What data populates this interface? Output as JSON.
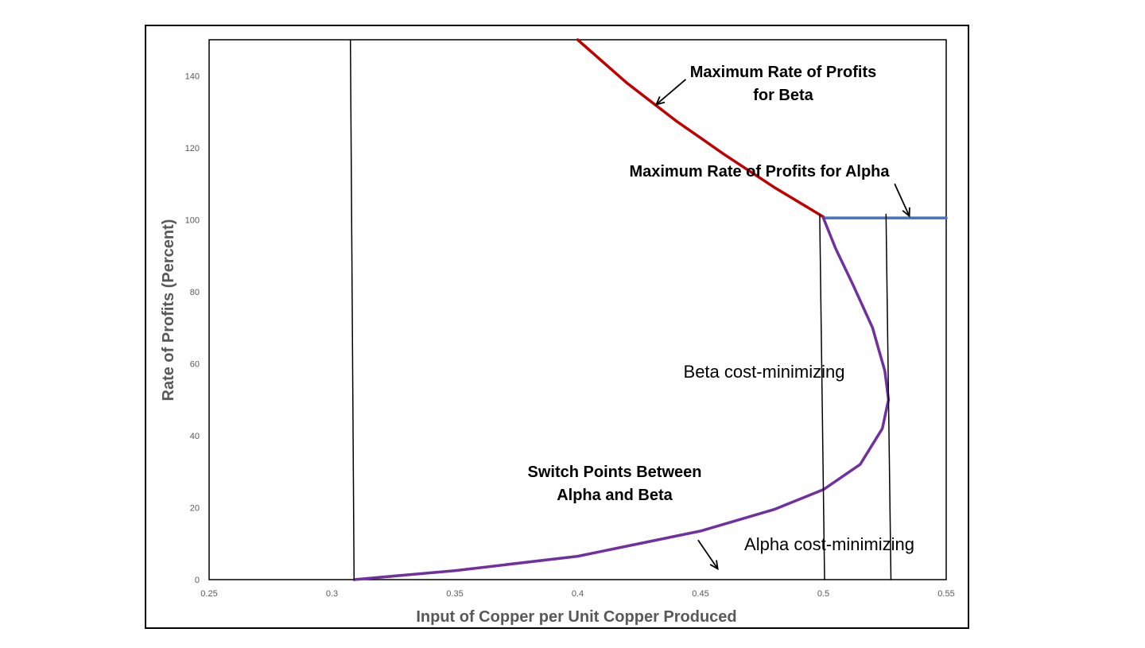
{
  "chart_data": {
    "type": "line",
    "title": "",
    "xlabel": "Input of Copper per Unit Copper Produced",
    "ylabel": "Rate of Profits (Percent)",
    "xlim": [
      0.25,
      0.55
    ],
    "ylim": [
      0,
      150
    ],
    "x_ticks": [
      "0.25",
      "0.3",
      "0.35",
      "0.4",
      "0.45",
      "0.5",
      "0.55"
    ],
    "y_ticks": [
      "0",
      "20",
      "40",
      "60",
      "80",
      "100",
      "120",
      "140"
    ],
    "grid": false,
    "legend": "none",
    "series": [
      {
        "key": "beta_max",
        "color": "#C00000",
        "points": [
          [
            0.4,
            150
          ],
          [
            0.42,
            138
          ],
          [
            0.44,
            127.5
          ],
          [
            0.46,
            118
          ],
          [
            0.48,
            109
          ],
          [
            0.5,
            100.8
          ]
        ]
      },
      {
        "key": "alpha_max",
        "color": "#4472C4",
        "points": [
          [
            0.5,
            100.5
          ],
          [
            0.55,
            100.5
          ]
        ]
      },
      {
        "key": "switch_points",
        "color": "#7030A0",
        "points": [
          [
            0.309,
            0
          ],
          [
            0.35,
            2.5
          ],
          [
            0.4,
            6.5
          ],
          [
            0.45,
            13.5
          ],
          [
            0.48,
            19.5
          ],
          [
            0.5,
            25
          ],
          [
            0.515,
            32
          ],
          [
            0.524,
            42
          ],
          [
            0.5265,
            50
          ],
          [
            0.525,
            58
          ],
          [
            0.52,
            70
          ],
          [
            0.512,
            82
          ],
          [
            0.505,
            92
          ],
          [
            0.5,
            100.5
          ]
        ]
      },
      {
        "key": "vline_1",
        "color": "#000000",
        "points": [
          [
            0.3075,
            150
          ],
          [
            0.309,
            0
          ]
        ]
      },
      {
        "key": "vline_2",
        "color": "#000000",
        "points": [
          [
            0.4985,
            101.5
          ],
          [
            0.5005,
            0
          ]
        ]
      },
      {
        "key": "vline_3",
        "color": "#000000",
        "points": [
          [
            0.5255,
            101.5
          ],
          [
            0.5275,
            0
          ]
        ]
      }
    ],
    "annotations": [
      {
        "text": "Maximum Rate of Profits",
        "style": "bold"
      },
      {
        "text": "for Beta",
        "style": "bold"
      },
      {
        "text": "Maximum Rate of Profits for Alpha",
        "style": "bold"
      },
      {
        "text": "Switch Points Between",
        "style": "bold"
      },
      {
        "text": "Alpha and Beta",
        "style": "bold"
      },
      {
        "text": "Beta cost-minimizing",
        "style": "plain"
      },
      {
        "text": "Alpha cost-minimizing",
        "style": "plain"
      }
    ],
    "arrows": [
      {
        "from": [
          0.444,
          139
        ],
        "to": [
          0.432,
          132
        ]
      },
      {
        "from": [
          0.529,
          110
        ],
        "to": [
          0.535,
          101
        ]
      },
      {
        "from": [
          0.449,
          11
        ],
        "to": [
          0.457,
          3
        ]
      }
    ]
  }
}
